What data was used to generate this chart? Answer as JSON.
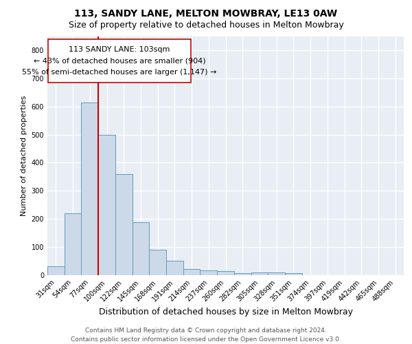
{
  "title1": "113, SANDY LANE, MELTON MOWBRAY, LE13 0AW",
  "title2": "Size of property relative to detached houses in Melton Mowbray",
  "xlabel": "Distribution of detached houses by size in Melton Mowbray",
  "ylabel": "Number of detached properties",
  "categories": [
    "31sqm",
    "54sqm",
    "77sqm",
    "100sqm",
    "122sqm",
    "145sqm",
    "168sqm",
    "191sqm",
    "214sqm",
    "237sqm",
    "260sqm",
    "282sqm",
    "305sqm",
    "328sqm",
    "351sqm",
    "374sqm",
    "397sqm",
    "419sqm",
    "442sqm",
    "465sqm",
    "488sqm"
  ],
  "values": [
    32,
    220,
    615,
    500,
    360,
    188,
    90,
    52,
    22,
    16,
    14,
    8,
    10,
    9,
    7,
    0,
    0,
    0,
    0,
    0,
    0
  ],
  "bar_color": "#ccd9e8",
  "bar_edge_color": "#6699bb",
  "vline_x": 2.5,
  "vline_color": "#cc0000",
  "annotation_text": "113 SANDY LANE: 103sqm\n← 43% of detached houses are smaller (904)\n55% of semi-detached houses are larger (1,147) →",
  "annotation_box_color": "#ffffff",
  "annotation_box_edge": "#cc0000",
  "ylim": [
    0,
    850
  ],
  "yticks": [
    0,
    100,
    200,
    300,
    400,
    500,
    600,
    700,
    800
  ],
  "bg_color": "#e8eef4",
  "grid_color": "#ffffff",
  "footer": "Contains HM Land Registry data © Crown copyright and database right 2024.\nContains public sector information licensed under the Open Government Licence v3.0.",
  "title1_fontsize": 10,
  "title2_fontsize": 9,
  "xlabel_fontsize": 9,
  "ylabel_fontsize": 8,
  "tick_fontsize": 7,
  "annotation_fontsize": 8,
  "footer_fontsize": 6.5
}
